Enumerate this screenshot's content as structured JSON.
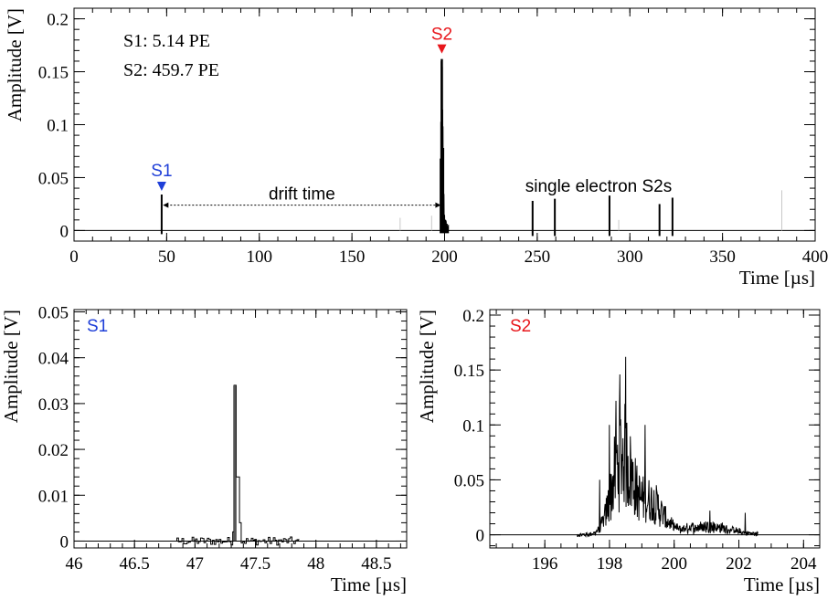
{
  "chart_data": [
    {
      "type": "line",
      "title": "",
      "xlabel": "Time [µs]",
      "ylabel": "Amplitude [V]",
      "xlim": [
        0,
        400
      ],
      "ylim": [
        -0.01,
        0.21
      ],
      "x_ticks": [
        0,
        50,
        100,
        150,
        200,
        250,
        300,
        350,
        400
      ],
      "x_tick_labels": [
        "0",
        "50",
        "100",
        "150",
        "200",
        "250",
        "300",
        "350",
        "400"
      ],
      "y_ticks": [
        0,
        0.05,
        0.1,
        0.15,
        0.2
      ],
      "y_tick_labels": [
        "0",
        "0.05",
        "0.1",
        "0.15",
        "0.2"
      ],
      "grid": false,
      "annotations": {
        "s1_text": "S1: 5.14 PE",
        "s2_text": "S2: 459.7 PE",
        "s1_marker_label": "S1",
        "s2_marker_label": "S2",
        "drift_label": "drift time",
        "single_electron_label": "single electron S2s"
      },
      "marker_colors": {
        "s1": "#1f3fd8",
        "s2": "#e8161b"
      },
      "s1_peak": {
        "x": 47.3,
        "y": 0.034
      },
      "s2_peak": {
        "x": 198.5,
        "y": 0.162
      },
      "drift_time": {
        "x_start": 48,
        "x_end": 198
      },
      "single_electron_pulses": [
        {
          "x": 247.5,
          "y": 0.028
        },
        {
          "x": 259.5,
          "y": 0.03
        },
        {
          "x": 289.0,
          "y": 0.033
        },
        {
          "x": 316.0,
          "y": 0.025
        },
        {
          "x": 323.0,
          "y": 0.031
        }
      ],
      "gray_spikes": [
        {
          "x": 176,
          "y": 0.012
        },
        {
          "x": 193,
          "y": 0.014
        },
        {
          "x": 294,
          "y": 0.01
        },
        {
          "x": 382,
          "y": 0.038
        }
      ]
    },
    {
      "type": "line",
      "title": "",
      "label": "S1",
      "xlabel": "Time [µs]",
      "ylabel": "Amplitude [V]",
      "xlim": [
        46,
        48.75
      ],
      "ylim": [
        -0.0015,
        0.0505
      ],
      "x_ticks": [
        46,
        46.5,
        47,
        47.5,
        48,
        48.5
      ],
      "x_tick_labels": [
        "46",
        "46.5",
        "47",
        "47.5",
        "48",
        "48.5"
      ],
      "y_ticks": [
        0,
        0.01,
        0.02,
        0.03,
        0.04,
        0.05
      ],
      "y_tick_labels": [
        "0",
        "0.01",
        "0.02",
        "0.03",
        "0.04",
        "0.05"
      ],
      "grid": false,
      "peak": {
        "x": 47.34,
        "y": 0.034
      },
      "secondary": {
        "x": 47.36,
        "y": 0.014
      },
      "noise_range": [
        46.85,
        47.85
      ]
    },
    {
      "type": "line",
      "title": "",
      "label": "S2",
      "xlabel": "Time [µs]",
      "ylabel": "Amplitude [V]",
      "xlim": [
        194.3,
        204.5
      ],
      "ylim": [
        -0.012,
        0.205
      ],
      "x_ticks": [
        196,
        198,
        200,
        202,
        204
      ],
      "x_tick_labels": [
        "196",
        "198",
        "200",
        "202",
        "204"
      ],
      "y_ticks": [
        0,
        0.05,
        0.1,
        0.15,
        0.2
      ],
      "y_tick_labels": [
        "0",
        "0.05",
        "0.1",
        "0.15",
        "0.2"
      ],
      "grid": false,
      "peak": {
        "x": 198.5,
        "y": 0.162
      },
      "signal_range": [
        197.0,
        202.6
      ]
    }
  ]
}
